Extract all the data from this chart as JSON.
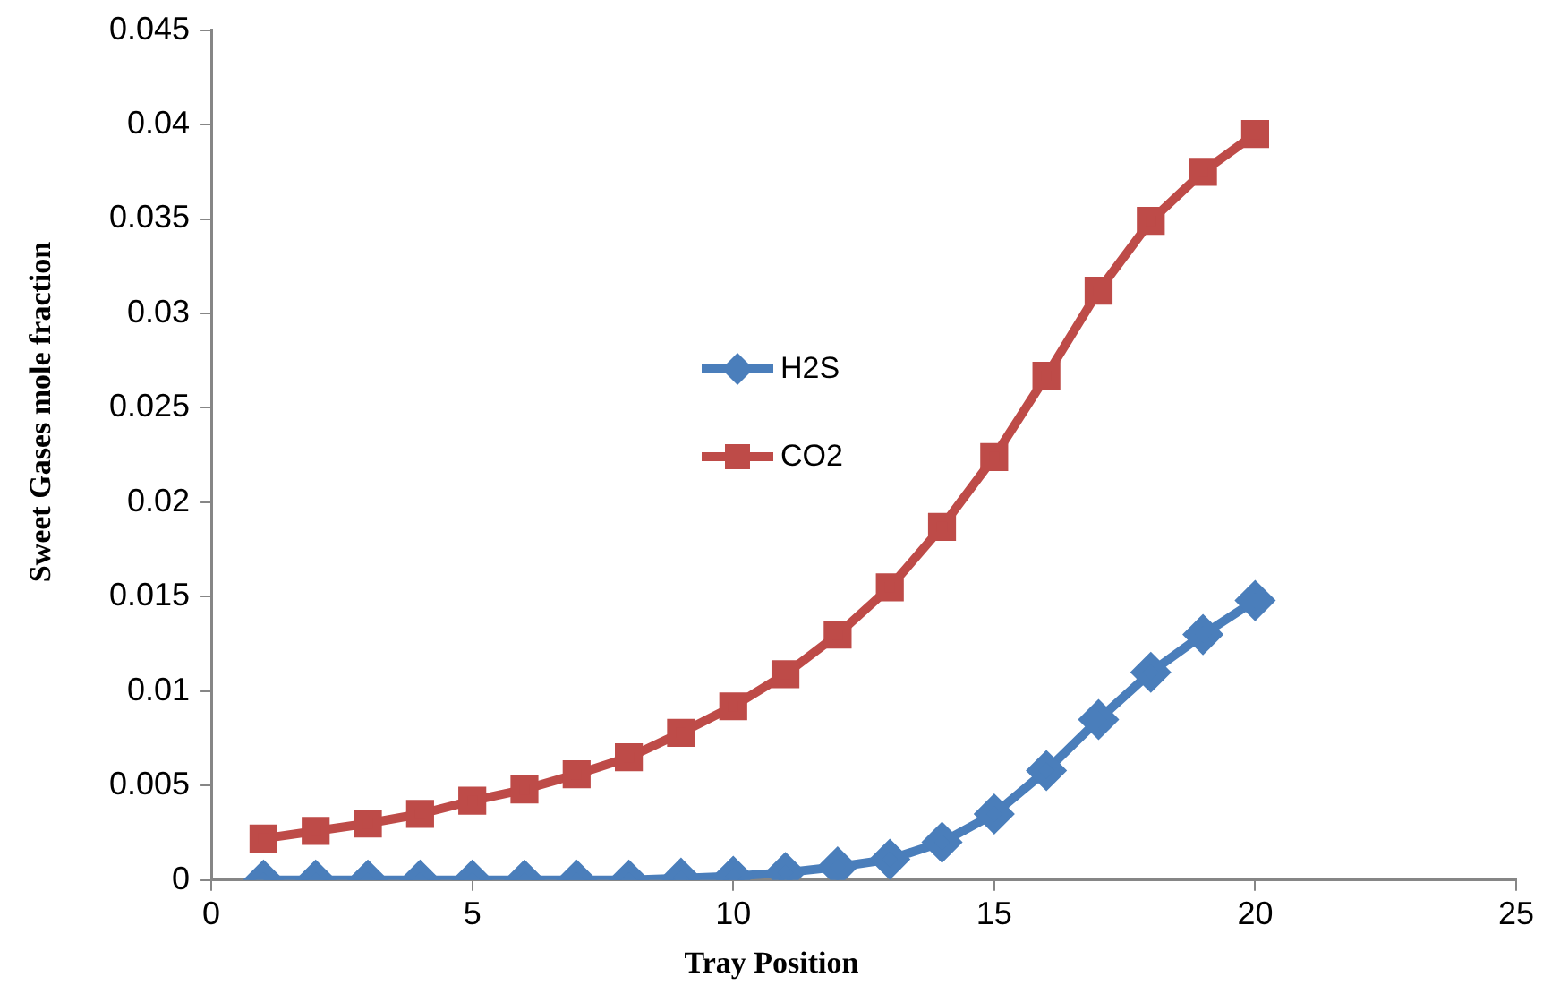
{
  "chart_data": {
    "type": "line",
    "xlabel": "Tray Position",
    "ylabel": "Sweet Gases mole fraction",
    "x": [
      1,
      2,
      3,
      4,
      5,
      6,
      7,
      8,
      9,
      10,
      11,
      12,
      13,
      14,
      15,
      16,
      17,
      18,
      19,
      20
    ],
    "series": [
      {
        "name": "H2S",
        "color": "#4a7ebb",
        "marker": "diamond",
        "values": [
          0,
          0,
          0,
          0,
          0,
          0,
          0,
          0,
          0.0001,
          0.0002,
          0.0004,
          0.0007,
          0.0011,
          0.002,
          0.0035,
          0.0058,
          0.0085,
          0.011,
          0.013,
          0.0148
        ]
      },
      {
        "name": "CO2",
        "color": "#be4b48",
        "marker": "square",
        "values": [
          0.0022,
          0.0026,
          0.003,
          0.0035,
          0.0042,
          0.0048,
          0.0056,
          0.0065,
          0.0078,
          0.0092,
          0.0109,
          0.013,
          0.0155,
          0.0187,
          0.0224,
          0.0267,
          0.0312,
          0.0349,
          0.0375,
          0.0395
        ]
      }
    ],
    "xlim": [
      0,
      25
    ],
    "xticks": [
      0,
      5,
      10,
      15,
      20,
      25
    ],
    "ylim": [
      0,
      0.045
    ],
    "yticks": [
      0,
      0.005,
      0.01,
      0.015,
      0.02,
      0.025,
      0.03,
      0.035,
      0.04,
      0.045
    ],
    "grid": false,
    "legend": "center"
  }
}
